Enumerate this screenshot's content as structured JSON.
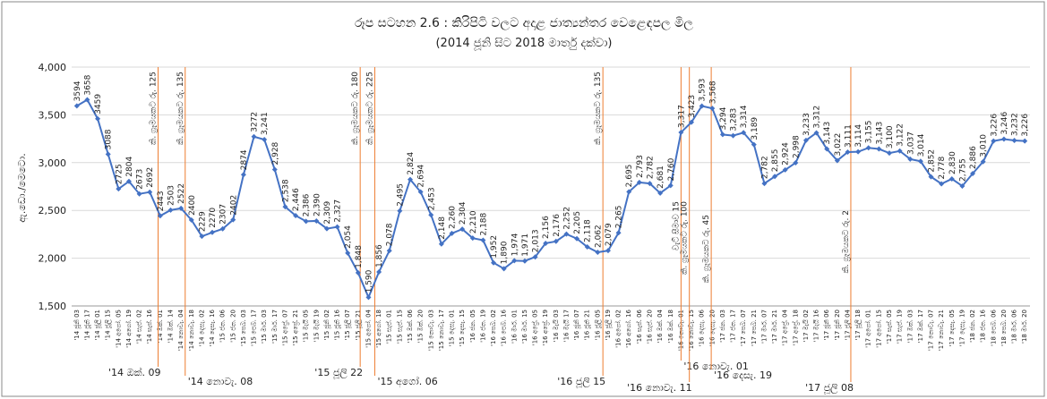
{
  "chart_data": {
    "type": "line",
    "title": "රූප සටහන 2.6 : කිරිපිටි වලට අදාළ ජාත්‍යන්තර වෙළෙඳපල මිල",
    "subtitle": "(2014 ජූනි සිට 2018 මාර්තු දක්වා)",
    "y_label": "ඇ.ඩො./මෙටො.",
    "categories": [
      "'14 ජූනි 03",
      "'14 ජූනි 17",
      "'14 ජූලි 01",
      "'14 ජූලි 15",
      "'14 අගෝ. 05",
      "'14 අගෝ. 19",
      "'14 සැප්. 02",
      "'14 සැප්. 16",
      "'14 ඔක්. 01",
      "'14 ඔක්. 14",
      "'14 නොවැ. 04",
      "'14 නොවැ. 18",
      "'14 දෙසැ. 02",
      "'14 දෙසැ. 16",
      "'15 ජන. 06",
      "'15 ජන. 20",
      "'15 පෙබ. 03",
      "'15 පෙබ. 17",
      "'15 මාර්. 03",
      "'15 මාර්. 17",
      "'15 අප්‍රේ. 07",
      "'15 අප්‍රේ. 21",
      "'15 මැයි 05",
      "'15 මැයි 19",
      "'15 ජූනි 02",
      "'15 ජූනි 16",
      "'15 ජූලි 07",
      "'15 ජූලි 21",
      "'15 අගෝ. 04",
      "'15 අගෝ. 18",
      "'15 සැප්. 01",
      "'15 සැප්. 15",
      "'15 ඔක්. 06",
      "'15 ඔක්. 20",
      "'15 නොවැ. 03",
      "'15 නොවැ. 17",
      "'15 දෙසැ. 01",
      "'15 දෙසැ. 15",
      "'16 ජන. 05",
      "'16 ජන. 19",
      "'16 පෙබ. 02",
      "'16 පෙබ. 16",
      "'16 මාර්. 01",
      "'16 මාර්. 15",
      "'16 අප්‍රේ. 05",
      "'16 අප්‍රේ. 19",
      "'16 මැයි 03",
      "'16 මැයි 17",
      "'16 ජූනි 07",
      "'16 ජූනි 21",
      "'16 ජූලි 05",
      "'16 ජූලි 19",
      "'16 අගෝ. 02",
      "'16 අගෝ. 16",
      "'16 සැප්. 06",
      "'16 සැප්. 20",
      "'16 ඔක්. 04",
      "'16 ඔක්. 18",
      "'16 නොවැ. 01",
      "'16 නොවැ. 15",
      "'16 දෙසැ. 06",
      "'16 දෙසැ. 20",
      "'17 ජන. 03",
      "'17 ජන. 17",
      "'17 පෙබ. 07",
      "'17 පෙබ. 21",
      "'17 මාර්. 07",
      "'17 මාර්. 21",
      "'17 අප්‍රේ. 04",
      "'17 අප්‍රේ. 18",
      "'17 මැයි 02",
      "'17 මැයි 16",
      "'17 ජූනි 06",
      "'17 ජූනි 20",
      "'17 ජූලි 04",
      "'17 ජූලි 18",
      "'17 අගෝ. 01",
      "'17 අගෝ. 15",
      "'17 සැප්. 05",
      "'17 සැප්. 19",
      "'17 ඔක්. 03",
      "'17 ඔක්. 17",
      "'17 නොවැ. 07",
      "'17 නොවැ. 21",
      "'17 දෙසැ. 05",
      "'17 දෙසැ. 19",
      "'18 ජන. 02",
      "'18 ජන. 16",
      "'18 පෙබ. 06",
      "'18 පෙබ. 20",
      "'18 මාර්. 06",
      "'18 මාර්. 20"
    ],
    "values": [
      3594,
      3658,
      3459,
      3088,
      2725,
      2804,
      2673,
      2692,
      2443,
      2503,
      2522,
      2400,
      2229,
      2270,
      2307,
      2402,
      2874,
      3272,
      3241,
      2928,
      2538,
      2446,
      2386,
      2390,
      2309,
      2327,
      2054,
      1848,
      1590,
      1856,
      2078,
      2495,
      2824,
      2694,
      2453,
      2148,
      2260,
      2304,
      2210,
      2188,
      1952,
      1890,
      1974,
      1971,
      2013,
      2156,
      2176,
      2252,
      2205,
      2118,
      2062,
      2079,
      2265,
      2695,
      2793,
      2782,
      2681,
      2760,
      3317,
      3423,
      3593,
      3568,
      3294,
      3283,
      3314,
      3189,
      2782,
      2855,
      2924,
      2998,
      3233,
      3312,
      3143,
      3022,
      3111,
      3114,
      3155,
      3143,
      3100,
      3122,
      3037,
      3014,
      2852,
      2778,
      2830,
      2755,
      2886,
      3010,
      3226,
      3246,
      3232,
      3226
    ],
    "value_labels": [
      "3594",
      "3658",
      "3459",
      "3088",
      "2725",
      "2804",
      "2673",
      "2692",
      "2443",
      "2503",
      "2522",
      "2400",
      "2229",
      "2270",
      "2307",
      "2402",
      "2874",
      "3272",
      "3,241",
      "2,928",
      "2,538",
      "2,446",
      "2,386",
      "2,390",
      "2,309",
      "2,327",
      "2,054",
      "1,848",
      "1,590",
      "1,856",
      "2,078",
      "2,495",
      "2,824",
      "2,694",
      "2,453",
      "2,148",
      "2,260",
      "2,304",
      "2,210",
      "2,188",
      "1,952",
      "1,890",
      "1,974",
      "1,971",
      "2,013",
      "2,156",
      "2,176",
      "2,252",
      "2,205",
      "2,118",
      "2,062",
      "2,079",
      "2,265",
      "2,695",
      "2,793",
      "2,782",
      "2,681",
      "2,760",
      "3,317",
      "3,423",
      "3,593",
      "3,568",
      "3,294",
      "3,283",
      "3,314",
      "3,189",
      "2,782",
      "2,855",
      "2,924",
      "2,998",
      "3,233",
      "3,312",
      "3,143",
      "3,022",
      "3,111",
      "3,114",
      "3,155",
      "3,143",
      "3,100",
      "3,122",
      "3,037",
      "3,014",
      "2,852",
      "2,778",
      "2,830",
      "2,755",
      "2,886",
      "3,010",
      "3,226",
      "3,246",
      "3,232",
      "3,226"
    ],
    "color": "#4472c4",
    "ylim": [
      1500,
      4000
    ],
    "yticks": [
      {
        "value": 1500,
        "label": "1,500"
      },
      {
        "value": 2000,
        "label": "2,000"
      },
      {
        "value": 2500,
        "label": "2,500"
      },
      {
        "value": 3000,
        "label": "3,000"
      },
      {
        "value": 3500,
        "label": "3,500"
      },
      {
        "value": 4000,
        "label": "4,000"
      }
    ],
    "grid": true,
    "annotation_color": "#ed7d31",
    "annotations": [
      {
        "text": "කි. ග්‍රෑමයකට රු. 125",
        "date": "'14 ඔක්. 09"
      },
      {
        "text": "කි. ග්‍රෑමයකට රු. 135",
        "date": "'14 නොවැ. 08"
      },
      {
        "text": "කි. ග්‍රෑමයකට රු. 180",
        "date": "'15 ජූලි 22"
      },
      {
        "text": "කි. ග්‍රෑමයකට රු. 225",
        "date": "'15 අගෝ. 06"
      },
      {
        "text": "කි. ග්‍රෑමයකට රු. 135",
        "date": "'16 ජූලි 15"
      },
      {
        "text": "වැට් සීමාව 15",
        "date": "'16 නොවැ. 01"
      },
      {
        "text": "කි. ග්‍රෑමයකට රු. 100",
        "date": "'16 නොවැ. 11"
      },
      {
        "text": "කි. ග්‍රෑමයකට රු. 45",
        "date": "'16 දෙසැ. 19"
      },
      {
        "text": "කි. ග්‍රෑමයකට රු. 2",
        "date": "'17 ජූලි 08"
      }
    ]
  }
}
